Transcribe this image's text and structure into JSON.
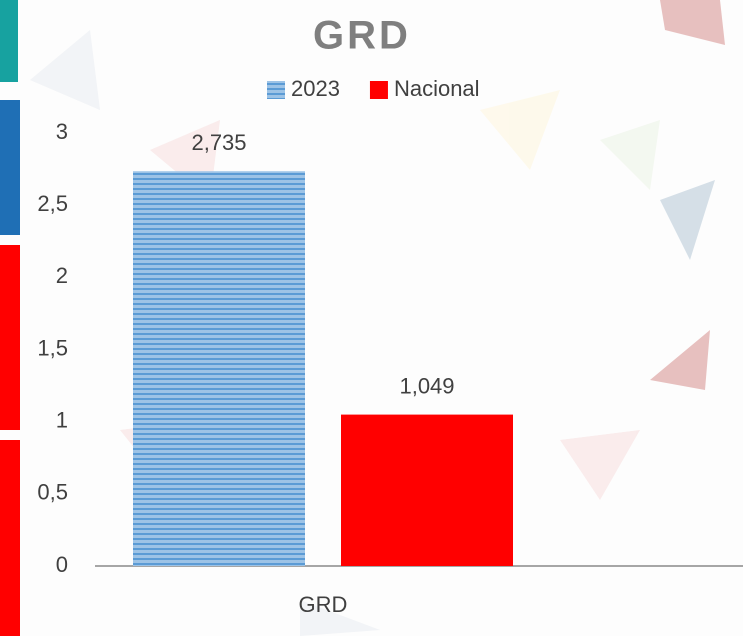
{
  "chart_data": {
    "type": "bar",
    "title": "GRD",
    "categories": [
      "GRD"
    ],
    "series": [
      {
        "name": "2023",
        "color": "#9dc3e6",
        "values": [
          2.735
        ],
        "value_labels": [
          "2,735"
        ]
      },
      {
        "name": "Nacional",
        "color": "#ff0000",
        "values": [
          1.049
        ],
        "value_labels": [
          "1,049"
        ]
      }
    ],
    "ylim": [
      0,
      3
    ],
    "yticks": [
      0,
      {
        "value": 0.5,
        "label": "0,5"
      },
      1,
      {
        "value": 1.5,
        "label": "1,5"
      },
      2,
      {
        "value": 2.5,
        "label": "2,5"
      },
      3
    ],
    "grid": false,
    "legend": "top"
  }
}
